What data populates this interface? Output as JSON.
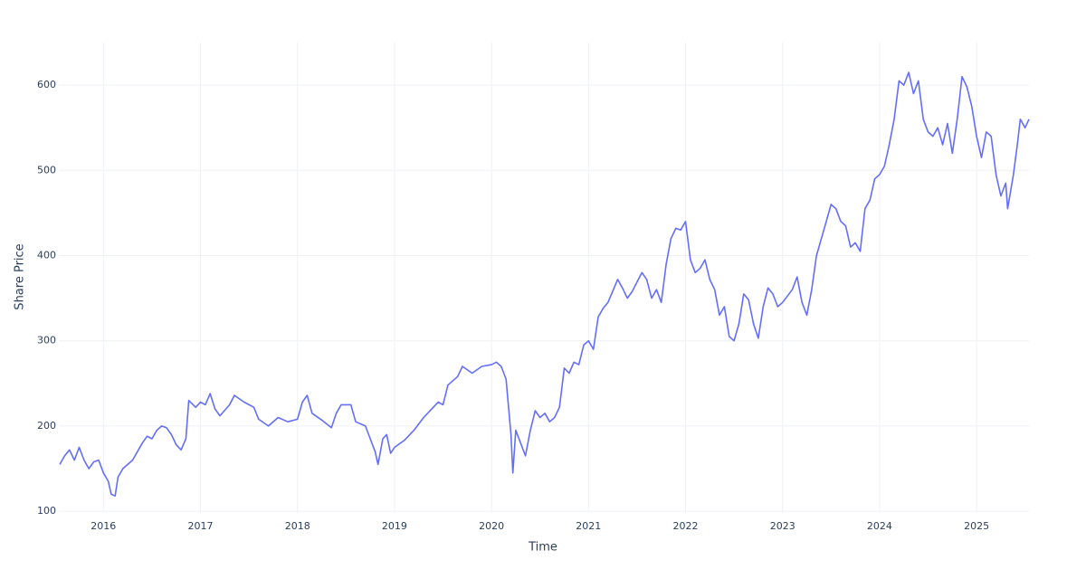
{
  "chart_data": {
    "type": "line",
    "x_label": "Time",
    "y_label": "Share Price",
    "xlim": [
      2015.54,
      2025.54
    ],
    "ylim": [
      98,
      650
    ],
    "xticks": [
      2016,
      2017,
      2018,
      2019,
      2020,
      2021,
      2022,
      2023,
      2024,
      2025
    ],
    "yticks": [
      100,
      200,
      300,
      400,
      500,
      600
    ],
    "grid": true,
    "series": [
      {
        "name": "Share Price",
        "color": "#636efa",
        "x": [
          2015.55,
          2015.6,
          2015.65,
          2015.7,
          2015.75,
          2015.8,
          2015.85,
          2015.9,
          2015.95,
          2016.0,
          2016.05,
          2016.08,
          2016.12,
          2016.15,
          2016.2,
          2016.3,
          2016.4,
          2016.45,
          2016.5,
          2016.55,
          2016.6,
          2016.65,
          2016.7,
          2016.75,
          2016.8,
          2016.85,
          2016.88,
          2016.95,
          2017.0,
          2017.05,
          2017.1,
          2017.15,
          2017.2,
          2017.3,
          2017.35,
          2017.45,
          2017.55,
          2017.6,
          2017.7,
          2017.8,
          2017.9,
          2018.0,
          2018.05,
          2018.1,
          2018.15,
          2018.25,
          2018.35,
          2018.4,
          2018.45,
          2018.55,
          2018.6,
          2018.7,
          2018.75,
          2018.8,
          2018.83,
          2018.88,
          2018.92,
          2018.96,
          2019.0,
          2019.1,
          2019.2,
          2019.3,
          2019.4,
          2019.45,
          2019.5,
          2019.55,
          2019.65,
          2019.7,
          2019.8,
          2019.9,
          2020.0,
          2020.05,
          2020.1,
          2020.15,
          2020.2,
          2020.22,
          2020.25,
          2020.3,
          2020.35,
          2020.4,
          2020.45,
          2020.5,
          2020.55,
          2020.6,
          2020.65,
          2020.7,
          2020.75,
          2020.8,
          2020.85,
          2020.9,
          2020.95,
          2021.0,
          2021.05,
          2021.1,
          2021.15,
          2021.2,
          2021.3,
          2021.35,
          2021.4,
          2021.45,
          2021.55,
          2021.6,
          2021.65,
          2021.7,
          2021.75,
          2021.8,
          2021.85,
          2021.9,
          2021.95,
          2022.0,
          2022.05,
          2022.1,
          2022.15,
          2022.2,
          2022.25,
          2022.3,
          2022.35,
          2022.4,
          2022.45,
          2022.5,
          2022.55,
          2022.6,
          2022.65,
          2022.7,
          2022.75,
          2022.8,
          2022.85,
          2022.9,
          2022.95,
          2023.0,
          2023.1,
          2023.15,
          2023.2,
          2023.25,
          2023.3,
          2023.35,
          2023.4,
          2023.45,
          2023.5,
          2023.55,
          2023.6,
          2023.65,
          2023.7,
          2023.75,
          2023.8,
          2023.85,
          2023.9,
          2023.95,
          2024.0,
          2024.05,
          2024.1,
          2024.15,
          2024.2,
          2024.25,
          2024.3,
          2024.35,
          2024.4,
          2024.45,
          2024.5,
          2024.55,
          2024.6,
          2024.65,
          2024.7,
          2024.75,
          2024.8,
          2024.85,
          2024.9,
          2024.95,
          2025.0,
          2025.05,
          2025.1,
          2025.15,
          2025.2,
          2025.25,
          2025.3,
          2025.32,
          2025.38,
          2025.42,
          2025.45,
          2025.5,
          2025.54
        ],
        "values": [
          155,
          165,
          172,
          160,
          175,
          160,
          150,
          158,
          160,
          145,
          135,
          120,
          118,
          140,
          150,
          160,
          180,
          188,
          185,
          195,
          200,
          198,
          190,
          178,
          172,
          185,
          230,
          222,
          228,
          225,
          238,
          220,
          212,
          225,
          236,
          228,
          222,
          208,
          200,
          210,
          205,
          208,
          228,
          236,
          215,
          207,
          198,
          215,
          225,
          225,
          205,
          200,
          185,
          170,
          155,
          185,
          190,
          168,
          175,
          183,
          195,
          210,
          222,
          228,
          225,
          248,
          258,
          270,
          262,
          270,
          272,
          275,
          270,
          255,
          190,
          145,
          195,
          180,
          165,
          195,
          218,
          210,
          215,
          205,
          210,
          222,
          268,
          262,
          275,
          272,
          295,
          300,
          290,
          328,
          338,
          345,
          372,
          362,
          350,
          358,
          380,
          372,
          350,
          360,
          345,
          390,
          420,
          432,
          430,
          440,
          395,
          380,
          385,
          395,
          372,
          360,
          330,
          340,
          305,
          300,
          320,
          355,
          348,
          320,
          303,
          340,
          362,
          355,
          340,
          345,
          360,
          375,
          345,
          330,
          360,
          400,
          420,
          440,
          460,
          455,
          440,
          435,
          410,
          415,
          405,
          455,
          465,
          490,
          495,
          505,
          530,
          560,
          605,
          600,
          615,
          590,
          605,
          560,
          545,
          540,
          550,
          530,
          555,
          520,
          560,
          610,
          598,
          575,
          540,
          515,
          545,
          540,
          495,
          470,
          485,
          455,
          495,
          530,
          560,
          550,
          560
        ]
      }
    ]
  }
}
